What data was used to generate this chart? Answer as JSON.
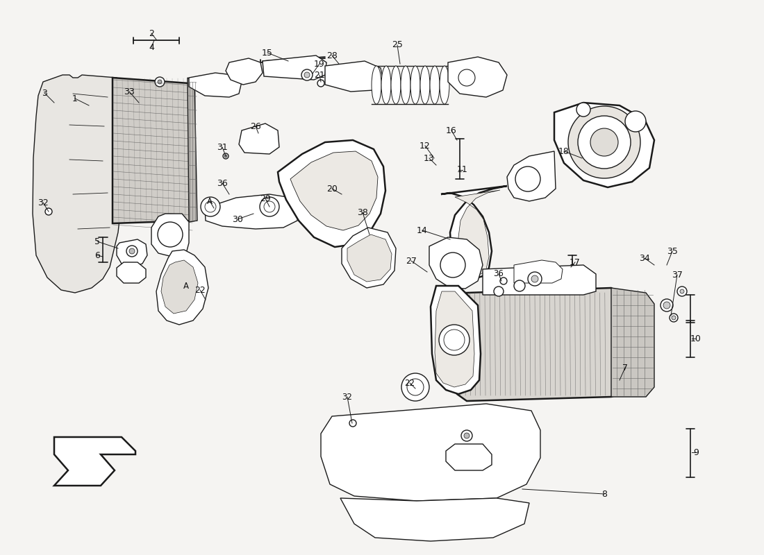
{
  "bg_color": "#f5f4f2",
  "line_color": "#1a1a1a",
  "text_color": "#111111",
  "lw_main": 1.0,
  "lw_thick": 1.8,
  "font_size": 9.0
}
